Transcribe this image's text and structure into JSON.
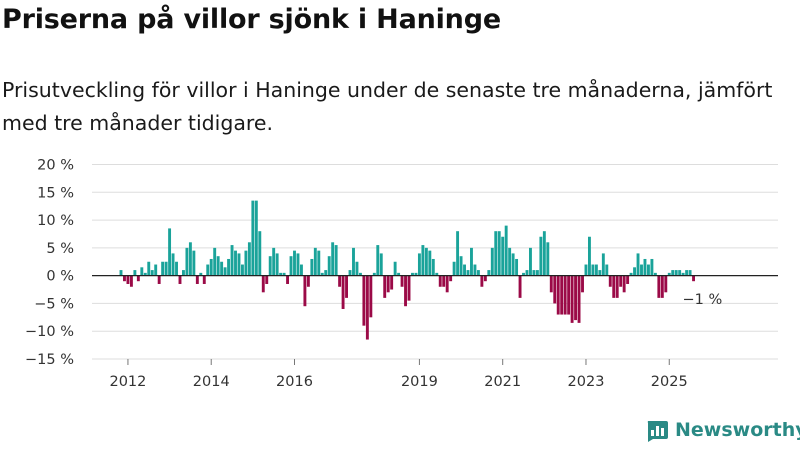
{
  "title": "Priserna på villor sjönk i Haninge",
  "subtitle": "Prisutveckling för villor i Haninge under de senaste tre månaderna, jämfört med tre månader tidigare.",
  "brand": "Newsworthy",
  "colors": {
    "positive": "#1aa39a",
    "negative": "#9b0a47",
    "brand": "#2a8a85",
    "grid": "#dddddd"
  },
  "chart_data": {
    "type": "bar",
    "title": "",
    "xlabel": "",
    "ylabel": "",
    "ylim": [
      -15,
      20
    ],
    "yticks": [
      20,
      15,
      10,
      5,
      0,
      -5,
      -10,
      -15
    ],
    "ytick_labels": [
      "20 %",
      "15 %",
      "10 %",
      "5 %",
      "0 %",
      "−5 %",
      "−10 %",
      "−15 %"
    ],
    "xticks": [
      {
        "label": "2012",
        "index": 2
      },
      {
        "label": "2014",
        "index": 26
      },
      {
        "label": "2016",
        "index": 50
      },
      {
        "label": "2019",
        "index": 86
      },
      {
        "label": "2021",
        "index": 110
      },
      {
        "label": "2023",
        "index": 134
      },
      {
        "label": "2025",
        "index": 158
      }
    ],
    "start": "2011-11",
    "frequency": "monthly",
    "values": [
      1,
      -1,
      -1.5,
      -2,
      1,
      -1,
      1.5,
      0.5,
      2.5,
      1,
      2,
      -1.5,
      2.5,
      2.5,
      8.5,
      4,
      2.5,
      -1.5,
      1,
      5,
      6,
      4.5,
      -1.5,
      0.5,
      -1.5,
      2,
      3,
      5,
      3.5,
      2.5,
      1.5,
      3,
      5.5,
      4.5,
      4,
      2,
      4.5,
      6,
      13.5,
      13.5,
      8,
      -3,
      -1.5,
      3.5,
      5,
      4,
      0.5,
      0.5,
      -1.5,
      3.5,
      4.5,
      4,
      2,
      -5.5,
      -2,
      3,
      5,
      4.5,
      0.5,
      1,
      3.5,
      6,
      5.5,
      -2,
      -6,
      -4,
      1,
      5,
      2.5,
      0.5,
      -9,
      -11.5,
      -7.5,
      0.5,
      5.5,
      4,
      -4,
      -3,
      -2.5,
      2.5,
      0.5,
      -2,
      -5.5,
      -4.5,
      0.5,
      0.5,
      4,
      5.5,
      5,
      4.5,
      3,
      0.5,
      -2,
      -2,
      -3,
      -1,
      2.5,
      8,
      3.5,
      2,
      1,
      5,
      2,
      1,
      -2,
      -1,
      1,
      5,
      8,
      8,
      7,
      9,
      5,
      4,
      3,
      -4,
      0.5,
      1,
      5,
      1,
      1,
      7,
      8,
      6,
      -3,
      -5,
      -7,
      -7,
      -7,
      -7,
      -8.5,
      -8,
      -8.5,
      -3,
      2,
      7,
      2,
      2,
      1,
      4,
      2,
      -2,
      -4,
      -4,
      -2,
      -3,
      -1.5,
      0.5,
      1.5,
      4,
      2,
      3,
      2,
      3,
      0.5,
      -4,
      -4,
      -3,
      0.5,
      1,
      1,
      1,
      0.5,
      1,
      1,
      -1
    ],
    "annotation": {
      "text": "−1 %",
      "index": 167
    }
  }
}
